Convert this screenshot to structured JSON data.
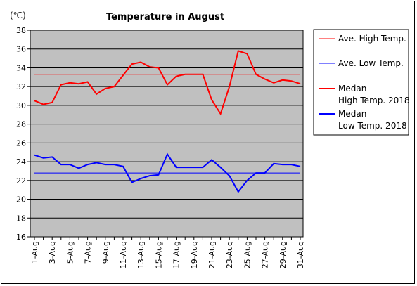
{
  "chart_data": {
    "type": "line",
    "title": "Temperature in August",
    "unit_label": "(℃)",
    "ylim": [
      16,
      38
    ],
    "yticks": [
      16,
      18,
      20,
      22,
      24,
      26,
      28,
      30,
      32,
      34,
      36,
      38
    ],
    "grid": true,
    "legend_position": "right",
    "x": [
      1,
      2,
      3,
      4,
      5,
      6,
      7,
      8,
      9,
      10,
      11,
      12,
      13,
      14,
      15,
      16,
      17,
      18,
      19,
      20,
      21,
      22,
      23,
      24,
      25,
      26,
      27,
      28,
      29,
      30,
      31
    ],
    "xtick_labels": [
      "1-Aug",
      "3-Aug",
      "5-Aug",
      "7-Aug",
      "9-Aug",
      "11-Aug",
      "13-Aug",
      "15-Aug",
      "17-Aug",
      "19-Aug",
      "21-Aug",
      "23-Aug",
      "25-Aug",
      "27-Aug",
      "29-Aug",
      "31-Aug"
    ],
    "series": [
      {
        "name": "Ave. High Temp.",
        "color": "#ff0000",
        "width": 1,
        "values": [
          33.3,
          33.3,
          33.3,
          33.3,
          33.3,
          33.3,
          33.3,
          33.3,
          33.3,
          33.3,
          33.3,
          33.3,
          33.3,
          33.3,
          33.3,
          33.3,
          33.3,
          33.3,
          33.3,
          33.3,
          33.3,
          33.3,
          33.3,
          33.3,
          33.3,
          33.3,
          33.3,
          33.3,
          33.3,
          33.3,
          33.3
        ]
      },
      {
        "name": "Ave. Low Temp.",
        "color": "#0000ff",
        "width": 1,
        "values": [
          22.8,
          22.8,
          22.8,
          22.8,
          22.8,
          22.8,
          22.8,
          22.8,
          22.8,
          22.8,
          22.8,
          22.8,
          22.8,
          22.8,
          22.8,
          22.8,
          22.8,
          22.8,
          22.8,
          22.8,
          22.8,
          22.8,
          22.8,
          22.8,
          22.8,
          22.8,
          22.8,
          22.8,
          22.8,
          22.8,
          22.8
        ]
      },
      {
        "name": "Medan High Temp. 2018",
        "color": "#ff0000",
        "width": 2,
        "values": [
          30.5,
          30.1,
          30.3,
          32.2,
          32.4,
          32.3,
          32.5,
          31.2,
          31.8,
          32.0,
          33.2,
          34.4,
          34.6,
          34.1,
          34.0,
          32.2,
          33.1,
          33.3,
          33.3,
          33.3,
          30.6,
          29.1,
          32.0,
          35.8,
          35.5,
          33.3,
          32.8,
          32.4,
          32.7,
          32.6,
          32.3
        ]
      },
      {
        "name": "Medan Low Temp. 2018",
        "color": "#0000ff",
        "width": 2,
        "values": [
          24.7,
          24.4,
          24.5,
          23.7,
          23.7,
          23.3,
          23.7,
          23.9,
          23.7,
          23.7,
          23.5,
          21.8,
          22.2,
          22.5,
          22.6,
          24.8,
          23.4,
          23.4,
          23.4,
          23.4,
          24.2,
          23.4,
          22.5,
          20.8,
          22.0,
          22.8,
          22.8,
          23.8,
          23.7,
          23.7,
          23.5
        ]
      }
    ],
    "legend": [
      {
        "line1": "Ave. High Temp.",
        "line2": "",
        "color": "#ff0000",
        "width": 1
      },
      {
        "line1": "Ave. Low Temp.",
        "line2": "",
        "color": "#0000ff",
        "width": 1
      },
      {
        "line1": "Medan",
        "line2": "High Temp. 2018",
        "color": "#ff0000",
        "width": 2
      },
      {
        "line1": "Medan",
        "line2": "Low Temp. 2018",
        "color": "#0000ff",
        "width": 2
      }
    ]
  },
  "colors": {
    "plot_background": "#c0c0c0",
    "gridline": "#000000"
  }
}
